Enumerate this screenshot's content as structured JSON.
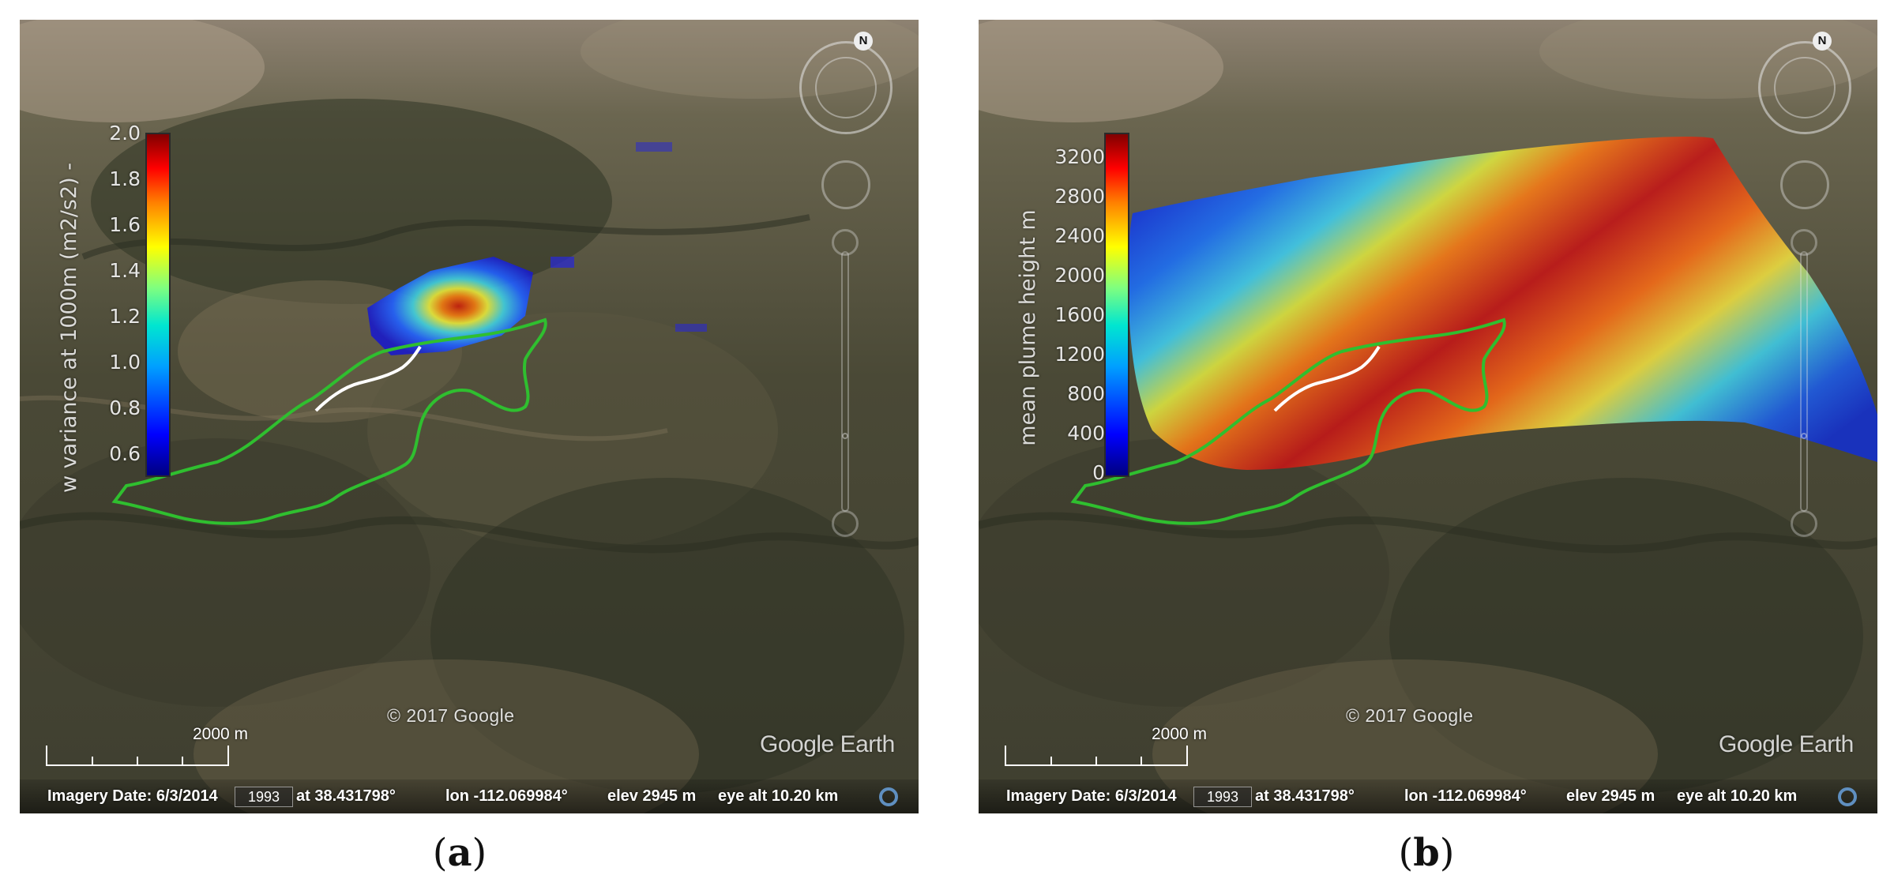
{
  "panels": [
    {
      "id": "a",
      "caption_letter": "a",
      "colorbar": {
        "title": "w variance at 1000m (m2/s2) -",
        "ticks": [
          "2.0",
          "1.8",
          "1.6",
          "1.4",
          "1.2",
          "1.0",
          "0.8",
          "0.6"
        ],
        "range": [
          0.5,
          2.0
        ],
        "colormap": "jet"
      },
      "field_type": "small plume variance patch",
      "compass_label": "N",
      "copyright": "© 2017 Google",
      "brand": "Google Earth",
      "scale_label": "2000 m",
      "status": {
        "imagery_date": "Imagery Date: 6/3/2014",
        "year": "1993",
        "lat": "at  38.431798°",
        "lon": "lon -112.069984°",
        "elev": "elev  2945 m",
        "eye_alt": "eye alt  10.20 km"
      },
      "overlay_colors": {
        "fire_perimeter": "#2fbf2f",
        "fire_front": "#ffffff"
      }
    },
    {
      "id": "b",
      "caption_letter": "b",
      "colorbar": {
        "title": "mean plume height m",
        "ticks": [
          "3200",
          "2800",
          "2400",
          "2000",
          "1600",
          "1200",
          "800",
          "400",
          "0"
        ],
        "range": [
          0,
          3400
        ],
        "colormap": "jet"
      },
      "field_type": "broad plume height surface",
      "compass_label": "N",
      "copyright": "© 2017 Google",
      "brand": "Google Earth",
      "scale_label": "2000 m",
      "status": {
        "imagery_date": "Imagery Date: 6/3/2014",
        "year": "1993",
        "lat": "at  38.431798°",
        "lon": "lon -112.069984°",
        "elev": "elev  2945 m",
        "eye_alt": "eye alt  10.20 km"
      },
      "overlay_colors": {
        "fire_perimeter": "#2fbf2f",
        "fire_front": "#ffffff"
      }
    }
  ]
}
